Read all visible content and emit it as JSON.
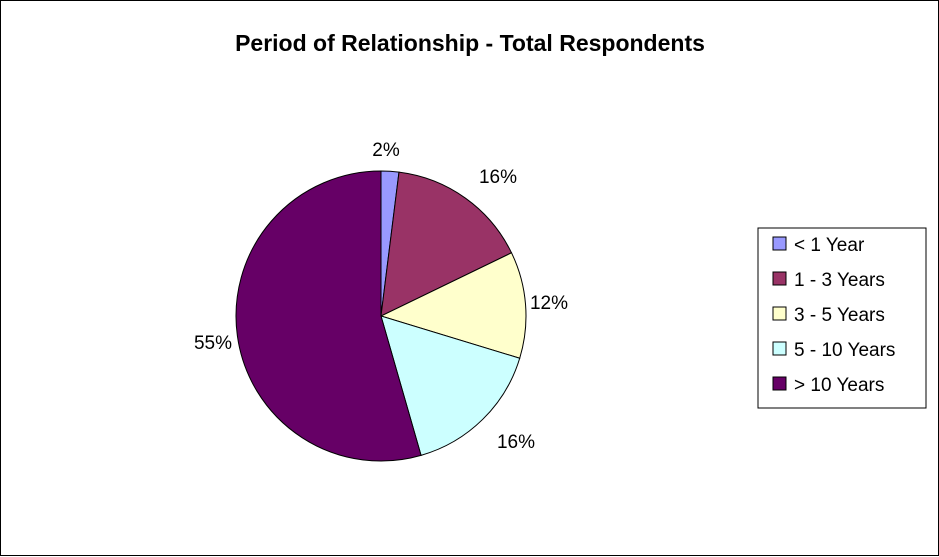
{
  "chart_data": {
    "type": "pie",
    "title": "Period of Relationship - Total Respondents",
    "categories": [
      "< 1 Year",
      "1 - 3 Years",
      "3 - 5 Years",
      "5 - 10 Years",
      "> 10 Years"
    ],
    "values": [
      2,
      16,
      12,
      16,
      55
    ],
    "labels": [
      "2%",
      "16%",
      "12%",
      "16%",
      "55%"
    ],
    "colors": [
      "#9999FF",
      "#993366",
      "#FFFFCC",
      "#CCFFFF",
      "#660066"
    ],
    "legend_position": "right"
  }
}
